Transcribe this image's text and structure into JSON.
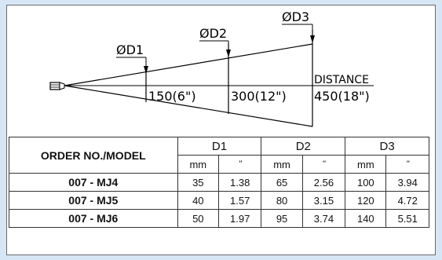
{
  "diagram": {
    "labels": {
      "d1": "ØD1",
      "d2": "ØD2",
      "d3": "ØD3",
      "distance": "DISTANCE",
      "dist1": "150(6\")",
      "dist2": "300(12\")",
      "dist3": "450(18\")"
    }
  },
  "table": {
    "model_header": "ORDER NO./MODEL",
    "groups": [
      "D1",
      "D2",
      "D3"
    ],
    "unit_mm": "mm",
    "unit_in": "\"",
    "rows": [
      {
        "model": "007 - MJ4",
        "d1_mm": "35",
        "d1_in": "1.38",
        "d2_mm": "65",
        "d2_in": "2.56",
        "d3_mm": "100",
        "d3_in": "3.94"
      },
      {
        "model": "007 - MJ5",
        "d1_mm": "40",
        "d1_in": "1.57",
        "d2_mm": "80",
        "d2_in": "3.15",
        "d3_mm": "120",
        "d3_in": "4.72"
      },
      {
        "model": "007 - MJ6",
        "d1_mm": "50",
        "d1_in": "1.97",
        "d2_mm": "95",
        "d2_in": "3.74",
        "d3_mm": "140",
        "d3_in": "5.51"
      }
    ]
  }
}
